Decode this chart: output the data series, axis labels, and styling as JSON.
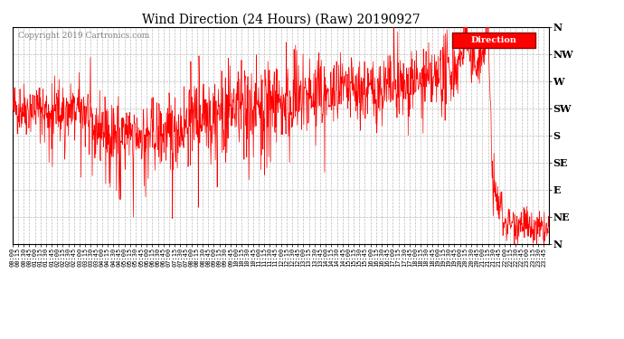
{
  "title": "Wind Direction (24 Hours) (Raw) 20190927",
  "copyright": "Copyright 2019 Cartronics.com",
  "line_color": "red",
  "background_color": "white",
  "grid_color": "#bbbbbb",
  "legend_bg": "red",
  "legend_text": "Direction",
  "legend_text_color": "white",
  "ytick_labels": [
    "N",
    "NE",
    "E",
    "SE",
    "S",
    "SW",
    "W",
    "NW",
    "N"
  ],
  "ytick_values": [
    0,
    45,
    90,
    135,
    180,
    225,
    270,
    315,
    360
  ],
  "ylim": [
    0,
    360
  ],
  "total_minutes": 1440,
  "seed": 42,
  "figsize": [
    6.9,
    3.75
  ],
  "dpi": 100
}
